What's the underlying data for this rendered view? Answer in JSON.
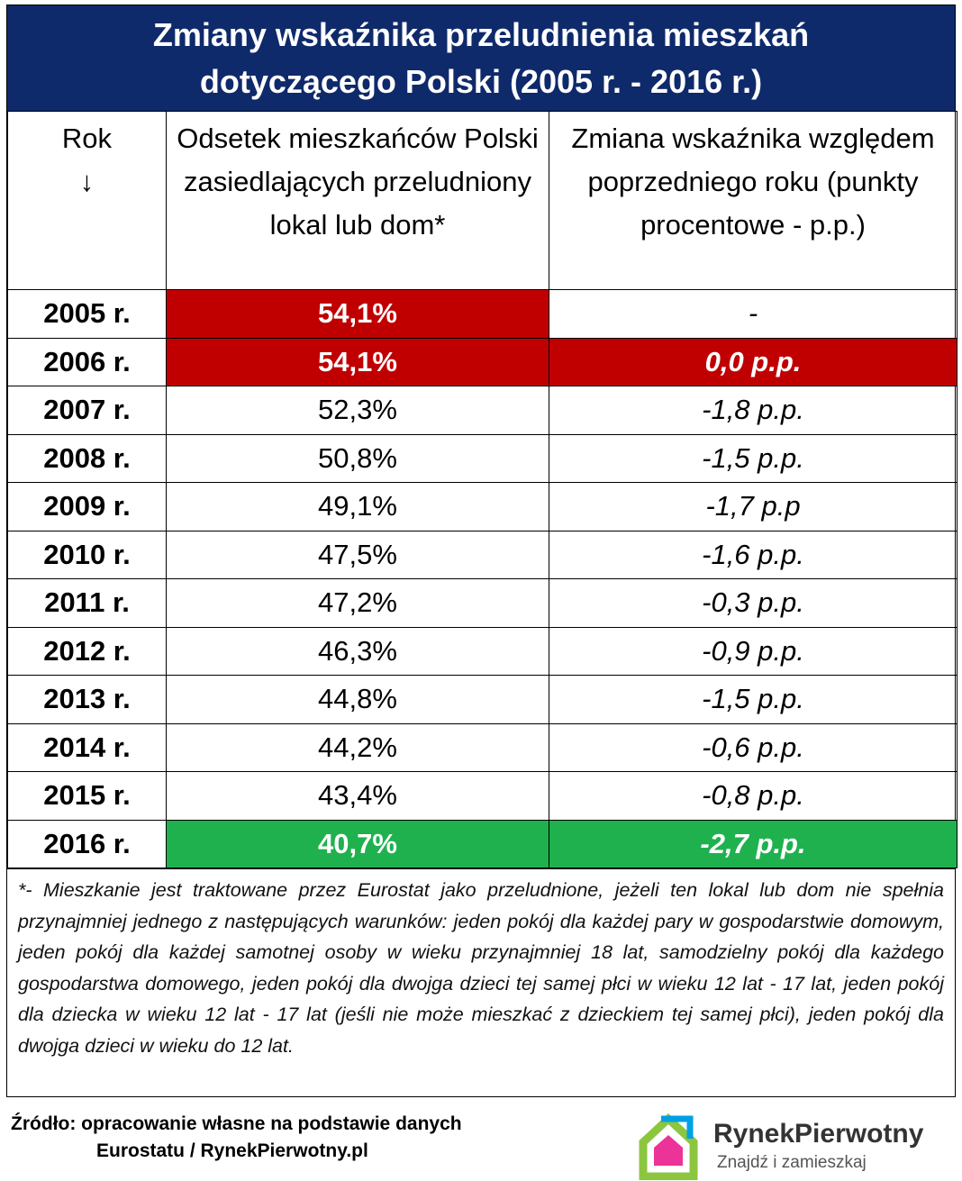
{
  "title": "Zmiany wskaźnika przeludnienia mieszkań dotyczącego Polski (2005 r. - 2016 r.)",
  "table": {
    "header": [
      "Rok\n↓",
      "Odsetek mieszkańców Polski zasiedlających przeludniony lokal lub dom*",
      "Zmiana wskaźnika względem poprzedniego roku (punkty procentowe - p.p.)"
    ],
    "rows": [
      [
        "2005 r.",
        "54,1%",
        "-"
      ],
      [
        "2006 r.",
        "54,1%",
        "0,0 p.p."
      ],
      [
        "2007 r.",
        "52,3%",
        "-1,8 p.p."
      ],
      [
        "2008 r.",
        "50,8%",
        "-1,5 p.p."
      ],
      [
        "2009 r.",
        "49,1%",
        "-1,7 p.p"
      ],
      [
        "2010 r.",
        "47,5%",
        "-1,6 p.p."
      ],
      [
        "2011 r.",
        "47,2%",
        "-0,3 p.p."
      ],
      [
        "2012 r.",
        "46,3%",
        "-0,9 p.p."
      ],
      [
        "2013 r.",
        "44,8%",
        "-1,5 p.p."
      ],
      [
        "2014 r.",
        "44,2%",
        "-0,6 p.p."
      ],
      [
        "2015 r.",
        "43,4%",
        "-0,8 p.p."
      ],
      [
        "2016 r.",
        "40,7%",
        "-2,7 p.p."
      ]
    ]
  },
  "footnote": "*- Mieszkanie jest traktowane przez Eurostat jako przeludnione, jeżeli ten lokal lub dom nie spełnia przynajmniej jednego z następujących warunków: jeden pokój dla każdej pary w gospodarstwie domowym, jeden pokój dla każdej samotnej osoby w wieku przynajmniej 18 lat, samodzielny pokój dla każdego gospodarstwa domowego, jeden pokój dla dwojga dzieci tej samej płci w wieku 12 lat - 17 lat, jeden pokój dla dziecka w wieku 12 lat - 17 lat (jeśli nie może mieszkać z dzieckiem tej samej płci), jeden pokój dla dwojga dzieci w wieku do 12 lat.",
  "source": [
    "Źródło: opracowanie własne na podstawie danych",
    "Eurostatu / RynekPierwotny.pl"
  ],
  "logo": {
    "name": "RynekPierwotny",
    "tagline": "Znajdź i zamieszkaj"
  }
}
